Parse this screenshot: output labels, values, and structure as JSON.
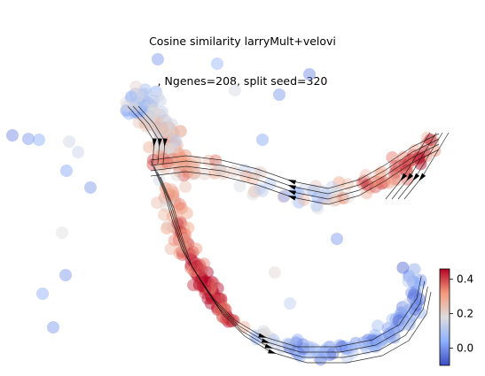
{
  "chart_data": {
    "type": "scatter",
    "title_lines": [
      "Cosine similarity larryMult+velovi",
      ", Ngenes=208, split seed=320"
    ],
    "embedding_axes_shown": false,
    "colorbar": {
      "colormap": "coolwarm",
      "min": -0.1,
      "max": 0.46,
      "ticks": [
        0.4,
        0.2,
        0.0
      ],
      "tick_labels": [
        "0.4",
        "0.2",
        "0.0"
      ],
      "low_color": "#3b4cc0",
      "mid_color": "#dddddd",
      "high_color": "#b40426"
    },
    "stream_arrows": true,
    "overlay": "velocity streamlines"
  }
}
